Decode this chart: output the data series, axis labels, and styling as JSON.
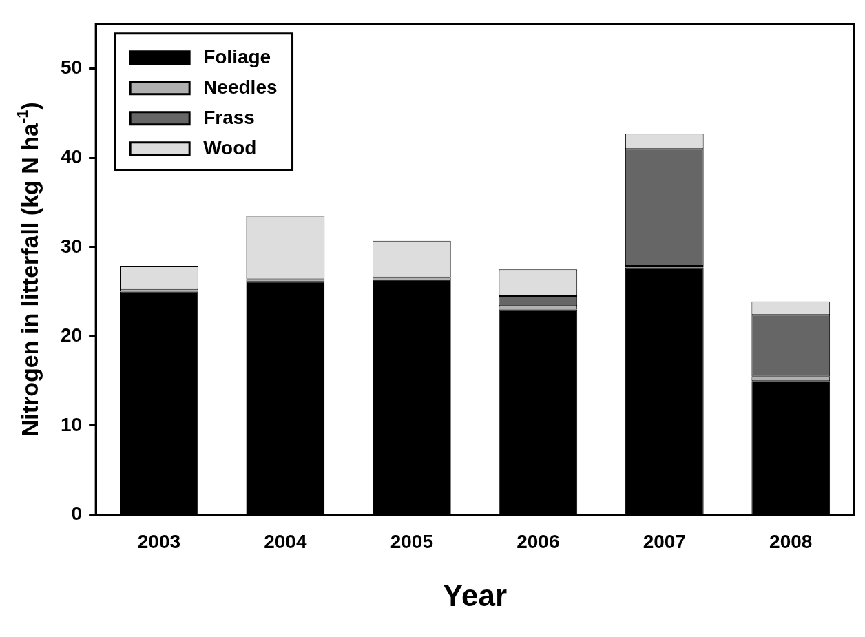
{
  "chart_data": {
    "type": "bar",
    "stacked": true,
    "xlabel": "Year",
    "ylabel": "Nitrogen in litterfall (kg N ha$^{-1}$)",
    "categories": [
      "2003",
      "2004",
      "2005",
      "2006",
      "2007",
      "2008"
    ],
    "series": [
      {
        "name": "Foliage",
        "color": "#000000",
        "values": [
          25.0,
          26.1,
          26.3,
          23.0,
          27.7,
          15.0
        ]
      },
      {
        "name": "Needles",
        "color": "#b0b0b0",
        "values": [
          0.3,
          0.3,
          0.3,
          0.4,
          0.2,
          0.5
        ]
      },
      {
        "name": "Frass",
        "color": "#666666",
        "values": [
          0,
          0,
          0,
          1.1,
          13.1,
          6.9
        ]
      },
      {
        "name": "Wood",
        "color": "#dddddd",
        "values": [
          2.6,
          7.1,
          4.1,
          3.0,
          1.7,
          1.5
        ]
      }
    ],
    "ylim": [
      0,
      55
    ],
    "yticks": [
      0,
      10,
      20,
      30,
      40,
      50
    ],
    "grid": false,
    "legend": "top left"
  }
}
